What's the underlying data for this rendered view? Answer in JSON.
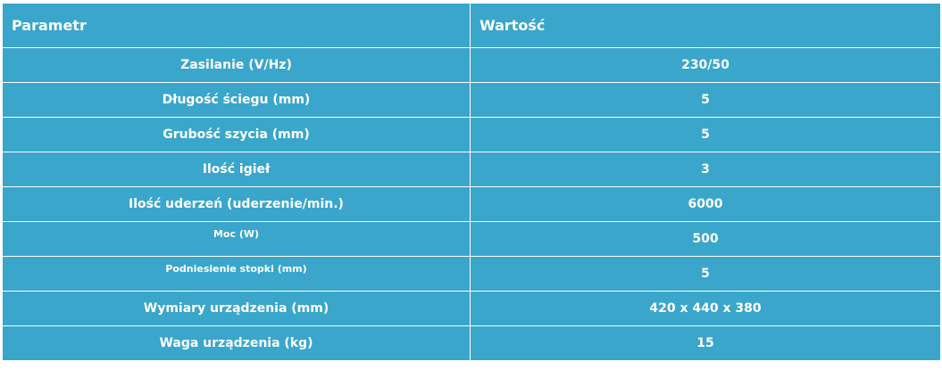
{
  "header": {
    "param_label": "Parametr",
    "value_label": "Wartość"
  },
  "rows": [
    {
      "param": "Zasilanie (V/Hz)",
      "value": "230/50"
    },
    {
      "param": "Długość ściegu (mm)",
      "value": "5"
    },
    {
      "param": "Grubość szycia (mm)",
      "value": "5"
    },
    {
      "param": "Ilość igieł",
      "value": "3"
    },
    {
      "param": "Ilość uderzeń (uderzenie/min.)",
      "value": "6000"
    },
    {
      "param": "Moc (W)",
      "value": "500"
    },
    {
      "param": "Podniesienie stopki (mm)",
      "value": "5"
    },
    {
      "param": "Wymiary urządzenia (mm)",
      "value": "420 x 440 x 380"
    },
    {
      "param": "Waga urządzenia (kg)",
      "value": "15"
    }
  ],
  "colors": {
    "cell_background": "#3aa6cb",
    "text": "#ffffff",
    "border": "#ffffff"
  }
}
